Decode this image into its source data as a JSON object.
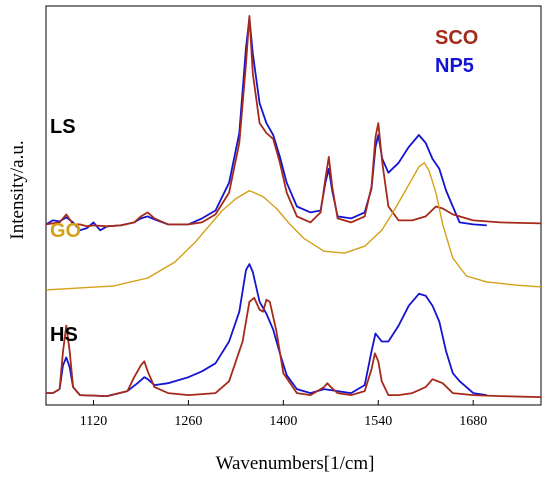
{
  "chart_data": {
    "type": "line",
    "xlabel": "Wavenumbers[1/cm]",
    "ylabel": "Intensity/a.u.",
    "xlim": [
      1050,
      1780
    ],
    "x_ticks": [
      1120,
      1260,
      1400,
      1540,
      1680
    ],
    "y_ticks": [],
    "grid": false,
    "legend": {
      "position": "top-right",
      "entries": [
        "SCO",
        "NP5"
      ]
    },
    "colors": {
      "SCO": "#a52a1a",
      "NP5": "#1414d2",
      "GO": "#d4a017",
      "SCO_peak": "#e01010"
    },
    "annotations": [
      {
        "text": "LS",
        "color": "#000000"
      },
      {
        "text": "GO",
        "color": "#d4a017"
      },
      {
        "text": "HS",
        "color": "#000000"
      }
    ],
    "groups": [
      {
        "name": "LS",
        "baseline": 0.8,
        "series": [
          {
            "name": "SCO",
            "x": [
              1050,
              1070,
              1080,
              1090,
              1100,
              1110,
              1120,
              1140,
              1160,
              1180,
              1190,
              1200,
              1210,
              1230,
              1260,
              1280,
              1300,
              1320,
              1335,
              1345,
              1350,
              1355,
              1365,
              1375,
              1385,
              1395,
              1405,
              1420,
              1440,
              1455,
              1462,
              1467,
              1472,
              1480,
              1500,
              1520,
              1530,
              1536,
              1540,
              1546,
              1555,
              1570,
              1590,
              1610,
              1625,
              1635,
              1650,
              1680,
              1720,
              1780
            ],
            "y": [
              0.9,
              1.0,
              1.4,
              0.9,
              0.9,
              0.8,
              0.85,
              0.8,
              0.85,
              1.0,
              1.3,
              1.5,
              1.2,
              0.9,
              0.9,
              1.0,
              1.4,
              2.5,
              5.0,
              9.0,
              11.4,
              8.5,
              6.0,
              5.5,
              5.2,
              4.0,
              2.5,
              1.3,
              1.0,
              1.5,
              3.2,
              4.3,
              2.8,
              1.2,
              1.0,
              1.3,
              2.8,
              5.3,
              6.0,
              4.0,
              1.8,
              1.1,
              1.1,
              1.3,
              1.8,
              1.7,
              1.4,
              1.1,
              1.0,
              0.95
            ]
          },
          {
            "name": "NP5",
            "x": [
              1050,
              1060,
              1070,
              1080,
              1090,
              1100,
              1110,
              1120,
              1130,
              1140,
              1160,
              1180,
              1190,
              1200,
              1210,
              1230,
              1260,
              1280,
              1300,
              1320,
              1335,
              1345,
              1350,
              1355,
              1365,
              1375,
              1385,
              1395,
              1405,
              1420,
              1440,
              1455,
              1462,
              1467,
              1472,
              1480,
              1500,
              1520,
              1530,
              1536,
              1540,
              1546,
              1555,
              1570,
              1585,
              1600,
              1610,
              1620,
              1630,
              1640,
              1650,
              1660,
              1680,
              1700
            ],
            "y": [
              0.9,
              1.1,
              1.05,
              1.25,
              1.0,
              0.6,
              0.7,
              1.0,
              0.6,
              0.8,
              0.85,
              1.0,
              1.2,
              1.3,
              1.15,
              0.9,
              0.9,
              1.2,
              1.6,
              3.0,
              5.5,
              9.8,
              11.3,
              9.5,
              7.0,
              6.0,
              5.4,
              4.3,
              3.0,
              1.8,
              1.5,
              1.6,
              3.0,
              3.7,
              2.6,
              1.3,
              1.2,
              1.5,
              2.7,
              4.8,
              5.4,
              4.2,
              3.5,
              4.0,
              4.8,
              5.4,
              5.0,
              4.2,
              3.7,
              2.6,
              1.8,
              1.0,
              0.9,
              0.85
            ]
          }
        ]
      },
      {
        "name": "GO",
        "baseline": -2.45,
        "series": [
          {
            "name": "GO",
            "x": [
              1050,
              1100,
              1150,
              1200,
              1240,
              1270,
              1290,
              1310,
              1330,
              1350,
              1370,
              1390,
              1410,
              1430,
              1460,
              1490,
              1520,
              1545,
              1560,
              1575,
              1590,
              1600,
              1608,
              1615,
              1625,
              1635,
              1650,
              1670,
              1700,
              1740,
              1780
            ],
            "y": [
              -2.4,
              -2.3,
              -2.2,
              -1.8,
              -1.0,
              0.0,
              0.8,
              1.6,
              2.2,
              2.6,
              2.3,
              1.7,
              0.9,
              0.2,
              -0.45,
              -0.55,
              -0.2,
              0.6,
              1.4,
              2.3,
              3.2,
              3.8,
              4.0,
              3.6,
              2.5,
              0.9,
              -0.8,
              -1.7,
              -2.0,
              -2.15,
              -2.25
            ]
          }
        ]
      },
      {
        "name": "HS",
        "baseline": -7.8,
        "series": [
          {
            "name": "SCO",
            "x": [
              1050,
              1060,
              1070,
              1075,
              1080,
              1085,
              1090,
              1100,
              1140,
              1170,
              1180,
              1190,
              1195,
              1200,
              1210,
              1230,
              1260,
              1300,
              1320,
              1340,
              1350,
              1357,
              1365,
              1370,
              1375,
              1380,
              1390,
              1400,
              1420,
              1440,
              1460,
              1465,
              1470,
              1480,
              1500,
              1520,
              1530,
              1535,
              1540,
              1545,
              1555,
              1570,
              1590,
              1610,
              1620,
              1635,
              1650,
              1680,
              1720,
              1780
            ],
            "y": [
              -7.6,
              -7.6,
              -7.4,
              -5.5,
              -4.2,
              -5.5,
              -7.3,
              -7.7,
              -7.75,
              -7.5,
              -6.8,
              -6.2,
              -6.0,
              -6.5,
              -7.3,
              -7.6,
              -7.7,
              -7.6,
              -7.0,
              -5.0,
              -3.0,
              -2.8,
              -3.4,
              -3.5,
              -2.9,
              -3.0,
              -4.5,
              -6.6,
              -7.6,
              -7.7,
              -7.3,
              -7.1,
              -7.3,
              -7.6,
              -7.7,
              -7.5,
              -6.4,
              -5.6,
              -6.0,
              -7.0,
              -7.7,
              -7.7,
              -7.6,
              -7.3,
              -6.9,
              -7.1,
              -7.6,
              -7.7,
              -7.75,
              -7.8
            ]
          },
          {
            "name": "NP5",
            "x": [
              1050,
              1060,
              1070,
              1075,
              1080,
              1085,
              1090,
              1100,
              1140,
              1170,
              1185,
              1195,
              1200,
              1210,
              1230,
              1260,
              1280,
              1300,
              1320,
              1335,
              1345,
              1350,
              1355,
              1365,
              1375,
              1385,
              1395,
              1405,
              1420,
              1440,
              1460,
              1480,
              1500,
              1520,
              1530,
              1536,
              1545,
              1555,
              1570,
              1585,
              1600,
              1610,
              1620,
              1630,
              1640,
              1650,
              1660,
              1670,
              1680,
              1700
            ],
            "y": [
              -7.6,
              -7.6,
              -7.4,
              -6.2,
              -5.8,
              -6.3,
              -7.3,
              -7.7,
              -7.75,
              -7.5,
              -7.1,
              -6.8,
              -6.9,
              -7.2,
              -7.1,
              -6.8,
              -6.5,
              -6.1,
              -5.0,
              -3.5,
              -1.4,
              -1.1,
              -1.5,
              -3.0,
              -3.6,
              -4.4,
              -5.6,
              -6.7,
              -7.4,
              -7.6,
              -7.4,
              -7.5,
              -7.6,
              -7.2,
              -5.5,
              -4.6,
              -5.0,
              -5.0,
              -4.2,
              -3.2,
              -2.6,
              -2.7,
              -3.2,
              -4.0,
              -5.5,
              -6.6,
              -7.0,
              -7.3,
              -7.6,
              -7.7
            ]
          }
        ]
      }
    ]
  }
}
